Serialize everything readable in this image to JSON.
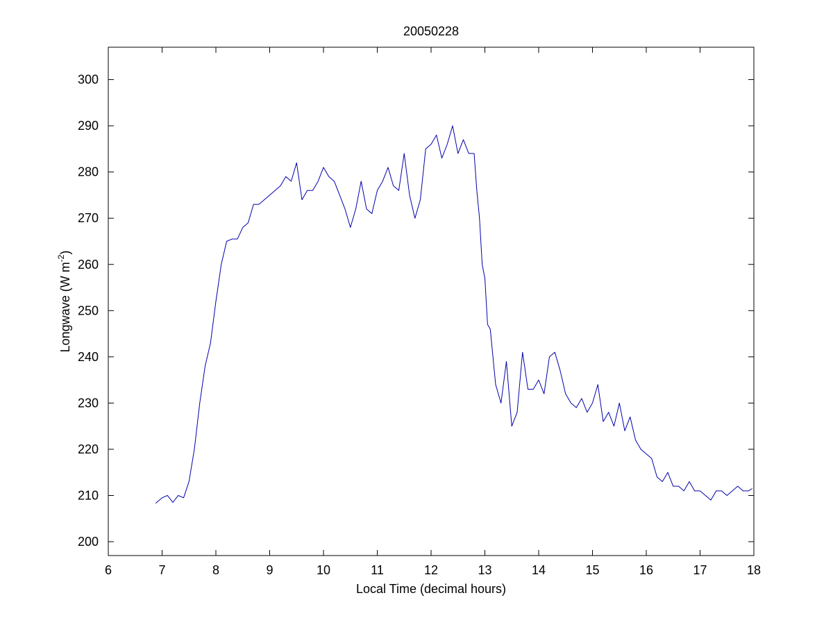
{
  "chart_data": {
    "type": "line",
    "title": "20050228",
    "xlabel": "Local Time (decimal hours)",
    "ylabel": {
      "prefix": "Longwave (W m",
      "superscript": "-2",
      "suffix": ")"
    },
    "xlim": [
      6,
      18
    ],
    "ylim": [
      197,
      307
    ],
    "xticks": [
      6,
      7,
      8,
      9,
      10,
      11,
      12,
      13,
      14,
      15,
      16,
      17,
      18
    ],
    "yticks": [
      200,
      210,
      220,
      230,
      240,
      250,
      260,
      270,
      280,
      290,
      300
    ],
    "grid": false,
    "line_color": "#0000aa",
    "series": [
      {
        "points": [
          [
            6.88,
            208.3
          ],
          [
            7.0,
            209.5
          ],
          [
            7.1,
            210.0
          ],
          [
            7.2,
            208.5
          ],
          [
            7.3,
            210.0
          ],
          [
            7.4,
            209.5
          ],
          [
            7.5,
            213.0
          ],
          [
            7.6,
            220.0
          ],
          [
            7.7,
            230.0
          ],
          [
            7.8,
            238.0
          ],
          [
            7.9,
            243.0
          ],
          [
            8.0,
            252.0
          ],
          [
            8.1,
            260.0
          ],
          [
            8.2,
            265.0
          ],
          [
            8.3,
            265.5
          ],
          [
            8.4,
            265.5
          ],
          [
            8.5,
            268.0
          ],
          [
            8.6,
            269.0
          ],
          [
            8.7,
            273.0
          ],
          [
            8.8,
            273.0
          ],
          [
            8.9,
            274.0
          ],
          [
            9.0,
            275.0
          ],
          [
            9.1,
            276.0
          ],
          [
            9.2,
            277.0
          ],
          [
            9.3,
            279.0
          ],
          [
            9.4,
            278.0
          ],
          [
            9.5,
            282.0
          ],
          [
            9.6,
            274.0
          ],
          [
            9.7,
            276.0
          ],
          [
            9.8,
            276.0
          ],
          [
            9.9,
            278.0
          ],
          [
            10.0,
            281.0
          ],
          [
            10.1,
            279.0
          ],
          [
            10.2,
            278.0
          ],
          [
            10.3,
            275.0
          ],
          [
            10.4,
            272.0
          ],
          [
            10.5,
            268.0
          ],
          [
            10.6,
            272.0
          ],
          [
            10.7,
            278.0
          ],
          [
            10.8,
            272.0
          ],
          [
            10.9,
            271.0
          ],
          [
            11.0,
            276.0
          ],
          [
            11.1,
            278.0
          ],
          [
            11.2,
            281.0
          ],
          [
            11.3,
            277.0
          ],
          [
            11.4,
            276.0
          ],
          [
            11.5,
            284.0
          ],
          [
            11.6,
            275.0
          ],
          [
            11.7,
            270.0
          ],
          [
            11.8,
            274.0
          ],
          [
            11.9,
            285.0
          ],
          [
            12.0,
            286.0
          ],
          [
            12.1,
            288.0
          ],
          [
            12.2,
            283.0
          ],
          [
            12.3,
            286.0
          ],
          [
            12.4,
            290.0
          ],
          [
            12.5,
            284.0
          ],
          [
            12.6,
            287.0
          ],
          [
            12.7,
            284.0
          ],
          [
            12.8,
            284.0
          ],
          [
            12.85,
            276.0
          ],
          [
            12.9,
            270.0
          ],
          [
            12.95,
            260.0
          ],
          [
            13.0,
            257.0
          ],
          [
            13.05,
            247.0
          ],
          [
            13.1,
            246.0
          ],
          [
            13.15,
            240.0
          ],
          [
            13.2,
            234.0
          ],
          [
            13.3,
            230.0
          ],
          [
            13.4,
            239.0
          ],
          [
            13.5,
            225.0
          ],
          [
            13.6,
            228.0
          ],
          [
            13.7,
            241.0
          ],
          [
            13.8,
            233.0
          ],
          [
            13.9,
            233.0
          ],
          [
            14.0,
            235.0
          ],
          [
            14.1,
            232.0
          ],
          [
            14.2,
            240.0
          ],
          [
            14.3,
            241.0
          ],
          [
            14.4,
            237.0
          ],
          [
            14.5,
            232.0
          ],
          [
            14.6,
            230.0
          ],
          [
            14.7,
            229.0
          ],
          [
            14.8,
            231.0
          ],
          [
            14.9,
            228.0
          ],
          [
            15.0,
            230.0
          ],
          [
            15.1,
            234.0
          ],
          [
            15.2,
            226.0
          ],
          [
            15.3,
            228.0
          ],
          [
            15.4,
            225.0
          ],
          [
            15.5,
            230.0
          ],
          [
            15.6,
            224.0
          ],
          [
            15.7,
            227.0
          ],
          [
            15.8,
            222.0
          ],
          [
            15.9,
            220.0
          ],
          [
            16.0,
            219.0
          ],
          [
            16.1,
            218.0
          ],
          [
            16.2,
            214.0
          ],
          [
            16.3,
            213.0
          ],
          [
            16.4,
            215.0
          ],
          [
            16.5,
            212.0
          ],
          [
            16.6,
            212.0
          ],
          [
            16.7,
            211.0
          ],
          [
            16.8,
            213.0
          ],
          [
            16.9,
            211.0
          ],
          [
            17.0,
            211.0
          ],
          [
            17.1,
            210.0
          ],
          [
            17.2,
            209.0
          ],
          [
            17.3,
            211.0
          ],
          [
            17.4,
            211.0
          ],
          [
            17.5,
            210.0
          ],
          [
            17.6,
            211.0
          ],
          [
            17.7,
            212.0
          ],
          [
            17.8,
            211.0
          ],
          [
            17.9,
            211.0
          ],
          [
            17.97,
            211.5
          ]
        ]
      }
    ]
  }
}
